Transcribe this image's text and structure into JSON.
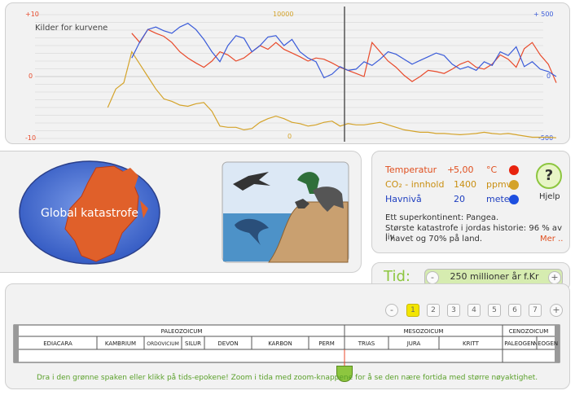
{
  "chart": {
    "source_label": "Kilder for kurvene",
    "left_axis": {
      "top": "+10",
      "mid": "0",
      "bottom": "-10",
      "color": "#e84a2b"
    },
    "mid_axis": {
      "top": "10000",
      "bottom": "0",
      "color": "#d4a32a"
    },
    "right_axis": {
      "top": "+ 500",
      "mid": "0",
      "bottom": "-500",
      "color": "#3a5bd9"
    }
  },
  "chart_data": {
    "type": "line",
    "x": [
      0,
      1,
      2,
      3,
      4,
      5,
      6,
      7,
      8,
      9,
      10,
      11,
      12,
      13,
      14,
      15,
      16,
      17,
      18,
      19,
      20,
      21,
      22,
      23,
      24,
      25,
      26,
      27,
      28,
      29,
      30,
      31,
      32,
      33,
      34,
      35,
      36,
      37,
      38,
      39,
      40,
      41,
      42,
      43,
      44,
      45,
      46,
      47,
      48,
      49,
      50,
      51,
      52,
      53,
      54,
      55,
      56,
      57,
      58,
      59,
      60
    ],
    "series": [
      {
        "color": "#e84a2b",
        "axis": "left",
        "values": [
          null,
          null,
          null,
          null,
          null,
          null,
          null,
          7,
          5.5,
          7.6,
          7,
          6.5,
          5.5,
          4,
          3,
          2.2,
          1.5,
          2.5,
          4,
          3.5,
          2.5,
          3,
          4,
          5,
          4.4,
          5.5,
          4.4,
          3.8,
          3.2,
          2.5,
          3,
          2.8,
          2.2,
          1.5,
          1,
          0.5,
          0,
          5.5,
          4,
          2.5,
          1.5,
          0.2,
          -0.8,
          0,
          1,
          0.8,
          0.5,
          1.2,
          2,
          2.5,
          1.5,
          1.2,
          2,
          3.5,
          2.8,
          1.5,
          4.5,
          5.5,
          3.5,
          2,
          -1
        ]
      },
      {
        "color": "#d4a32a",
        "axis": "mid",
        "values": [
          null,
          null,
          null,
          null,
          2500,
          4000,
          4500,
          7000,
          6000,
          5000,
          4000,
          3200,
          3000,
          2700,
          2600,
          2800,
          2900,
          2200,
          1000,
          900,
          900,
          700,
          800,
          1300,
          1600,
          1800,
          1600,
          1300,
          1200,
          1000,
          1100,
          1300,
          1400,
          1000,
          1200,
          1100,
          1100,
          1200,
          1300,
          1100,
          900,
          700,
          600,
          500,
          500,
          400,
          400,
          350,
          300,
          350,
          400,
          500,
          400,
          350,
          400,
          300,
          200,
          100,
          100,
          100,
          50
        ]
      },
      {
        "color": "#3a5bd9",
        "axis": "right",
        "values": [
          null,
          null,
          null,
          null,
          null,
          null,
          null,
          150,
          280,
          380,
          400,
          370,
          350,
          400,
          430,
          380,
          300,
          200,
          120,
          250,
          330,
          310,
          200,
          250,
          320,
          330,
          250,
          300,
          200,
          150,
          120,
          -10,
          20,
          80,
          50,
          60,
          120,
          90,
          140,
          200,
          180,
          140,
          100,
          130,
          160,
          190,
          170,
          100,
          60,
          80,
          50,
          120,
          90,
          200,
          170,
          240,
          80,
          120,
          60,
          40,
          0
        ]
      }
    ]
  },
  "map": {
    "label": "Global katastrofe"
  },
  "info": {
    "rows": [
      {
        "label": "Temperatur",
        "sign": "+",
        "value": "5,00",
        "unit": "°C",
        "color": "#e8230e",
        "text_color": "#e05020"
      },
      {
        "label": "CO₂ - innhold",
        "sign": "",
        "value": "1400",
        "unit": "ppmv",
        "color": "#d4a32a",
        "text_color": "#c98f12"
      },
      {
        "label": "Havnivå",
        "sign": "",
        "value": "20",
        "unit": "meter",
        "color": "#1d4fe0",
        "text_color": "#2040c0"
      }
    ],
    "help_icon": "?",
    "help_label": "Hjelp",
    "description_1": "Ett superkontinent: Pangea.",
    "description_2": "Største katastrofe i jordas historie: 96 % av liv",
    "description_3": "i havet og 70% på land.",
    "more_link": "Mer .."
  },
  "time": {
    "label": "Tid:",
    "value": "250 millioner år f.Kr",
    "minus": "-",
    "plus": "+"
  },
  "zoom": {
    "minus": "-",
    "plus": "+",
    "levels": [
      "1",
      "2",
      "3",
      "4",
      "5",
      "6",
      "7"
    ],
    "active_level": "1"
  },
  "timeline": {
    "eras": [
      "PALEOZOICUM",
      "MESOZOICUM",
      "CENOZOICUM"
    ],
    "periods": [
      "EDIACARA",
      "KAMBRIUM",
      "ORDOVICIUM",
      "SILUR",
      "DEVON",
      "KARBON",
      "PERM",
      "TRIAS",
      "JURA",
      "KRITT",
      "PALEOGEN",
      "NEOGEN"
    ]
  },
  "instruction": "Dra i den grønne spaken eller klikk på tids-epokene! Zoom i tida med zoom-knappene for å se den nære fortida med større nøyaktighet.",
  "colors": {
    "accent_green": "#8dc63f",
    "time_bg": "#d6ecb0",
    "active_zoom": "#f3e600"
  }
}
